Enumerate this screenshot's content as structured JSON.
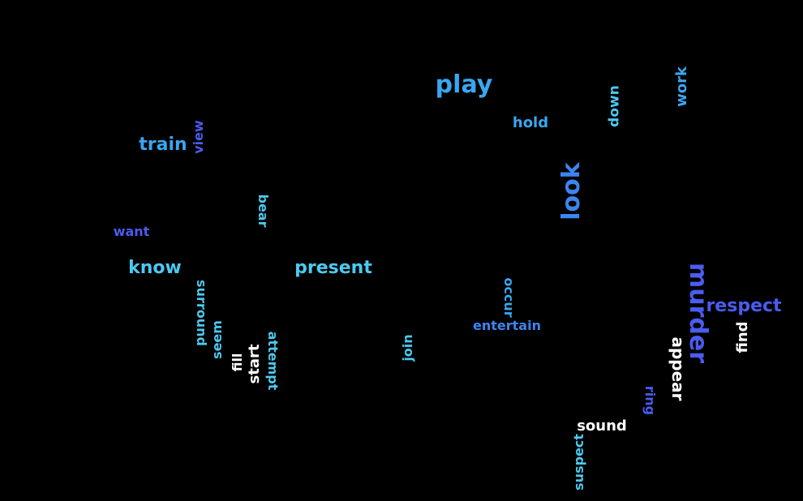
{
  "colors": {
    "background": "#000000",
    "sky": "#3aa6f0",
    "cyan": "#4cc9f0",
    "royal": "#4a5cf0",
    "white": "#ffffff"
  },
  "words": [
    {
      "text": "play",
      "color": "#3aa6f0"
    },
    {
      "text": "hold",
      "color": "#3aa6f0"
    },
    {
      "text": "down",
      "color": "#4cc9f0"
    },
    {
      "text": "work",
      "color": "#3aa6f0"
    },
    {
      "text": "train",
      "color": "#3aa6f0"
    },
    {
      "text": "view",
      "color": "#4a5cf0"
    },
    {
      "text": "look",
      "color": "#3a86f0"
    },
    {
      "text": "bear",
      "color": "#4cc9f0"
    },
    {
      "text": "want",
      "color": "#4a5cf0"
    },
    {
      "text": "know",
      "color": "#4cc9f0"
    },
    {
      "text": "present",
      "color": "#4cc9f0"
    },
    {
      "text": "murder",
      "color": "#4a5cf0"
    },
    {
      "text": "respect",
      "color": "#4a5cf0"
    },
    {
      "text": "surround",
      "color": "#4cc9f0"
    },
    {
      "text": "occur",
      "color": "#3aa6f0"
    },
    {
      "text": "entertain",
      "color": "#3a86f0"
    },
    {
      "text": "seem",
      "color": "#4cc9f0"
    },
    {
      "text": "find",
      "color": "#ffffff"
    },
    {
      "text": "join",
      "color": "#4cc9f0"
    },
    {
      "text": "attempt",
      "color": "#4cc9f0"
    },
    {
      "text": "start",
      "color": "#ffffff"
    },
    {
      "text": "fill",
      "color": "#ffffff"
    },
    {
      "text": "appear",
      "color": "#ffffff"
    },
    {
      "text": "ring",
      "color": "#4a5cf0"
    },
    {
      "text": "sound",
      "color": "#ffffff"
    },
    {
      "text": "suspect",
      "color": "#4cc9f0"
    }
  ]
}
